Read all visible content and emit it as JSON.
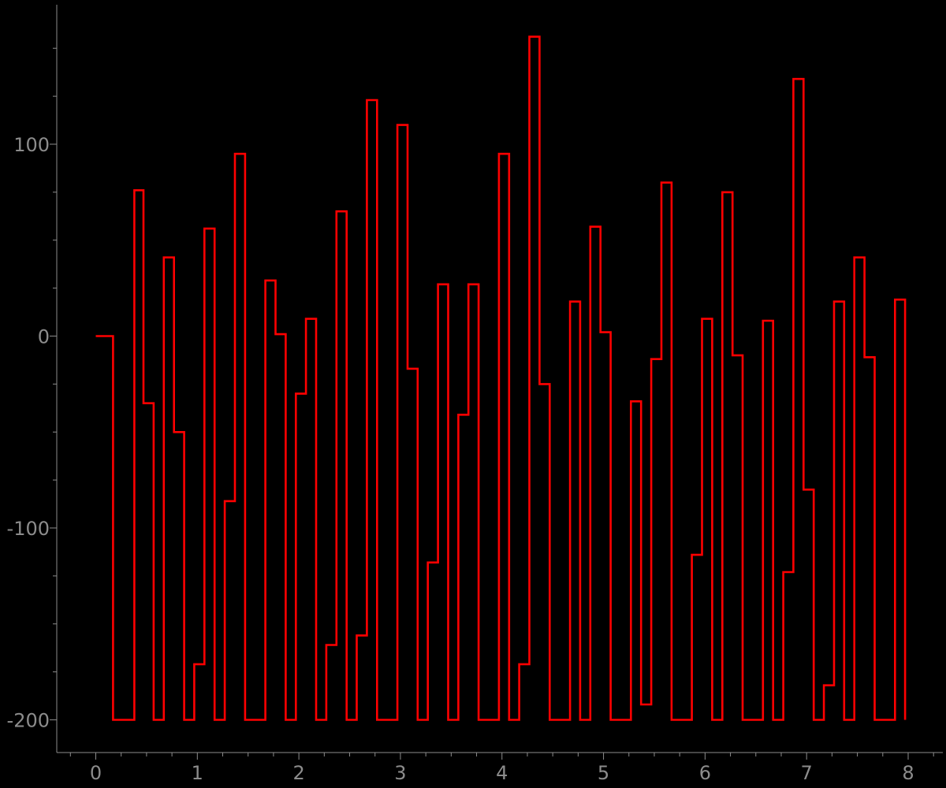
{
  "chart_data": {
    "type": "line",
    "title": "",
    "xlabel": "",
    "ylabel": "",
    "xlim": [
      -0.39,
      8.27
    ],
    "ylim": [
      -218,
      173
    ],
    "x_ticks": [
      0,
      1,
      2,
      3,
      4,
      5,
      6,
      7,
      8
    ],
    "y_ticks": [
      -200,
      -100,
      0,
      100
    ],
    "x_tick_labels": [
      "0",
      "1",
      "2",
      "3",
      "4",
      "5",
      "6",
      "7",
      "8"
    ],
    "y_tick_labels": [
      "-200",
      "-100",
      "0",
      "100"
    ],
    "grid": false,
    "legend": "none",
    "line_color": "#ff0000",
    "background_color": "#000000",
    "axis_color": "#8c8c8c",
    "series": [
      {
        "x": [
          0,
          0.17,
          0.17,
          0.38,
          0.38,
          0.47,
          0.47,
          0.57,
          0.57,
          0.67,
          0.67,
          0.77,
          0.77,
          0.87,
          0.87,
          0.97,
          0.97,
          1.07,
          1.07,
          1.17,
          1.17,
          1.27,
          1.27,
          1.37,
          1.37,
          1.47,
          1.47,
          1.67,
          1.67,
          1.77,
          1.77,
          1.87,
          1.87,
          1.97,
          1.97,
          2.07,
          2.07,
          2.17,
          2.17,
          2.27,
          2.27,
          2.37,
          2.37,
          2.47,
          2.47,
          2.57,
          2.57,
          2.67,
          2.67,
          2.77,
          2.77,
          2.97,
          2.97,
          3.07,
          3.07,
          3.17,
          3.17,
          3.27,
          3.27,
          3.37,
          3.37,
          3.47,
          3.47,
          3.57,
          3.57,
          3.67,
          3.67,
          3.77,
          3.77,
          3.97,
          3.97,
          4.07,
          4.07,
          4.17,
          4.17,
          4.27,
          4.27,
          4.37,
          4.37,
          4.47,
          4.47,
          4.67,
          4.67,
          4.77,
          4.77,
          4.87,
          4.87,
          4.97,
          4.97,
          5.07,
          5.07,
          5.27,
          5.27,
          5.37,
          5.37,
          5.47,
          5.47,
          5.57,
          5.57,
          5.67,
          5.67,
          5.87,
          5.87,
          5.97,
          5.97,
          6.07,
          6.07,
          6.17,
          6.17,
          6.27,
          6.27,
          6.37,
          6.37,
          6.57,
          6.57,
          6.67,
          6.67,
          6.77,
          6.77,
          6.87,
          6.87,
          6.97,
          6.97,
          7.07,
          7.07,
          7.17,
          7.17,
          7.27,
          7.27,
          7.37,
          7.37,
          7.47,
          7.47,
          7.57,
          7.57,
          7.67,
          7.67,
          7.87,
          7.87,
          7.97,
          7.97
        ],
        "y": [
          0,
          0,
          -200,
          -200,
          76,
          76,
          -35,
          -35,
          -200,
          -200,
          41,
          41,
          -50,
          -50,
          -200,
          -200,
          -171,
          -171,
          56,
          56,
          -200,
          -200,
          -86,
          -86,
          95,
          95,
          -200,
          -200,
          29,
          29,
          1,
          1,
          -200,
          -200,
          -30,
          -30,
          9,
          9,
          -200,
          -200,
          -161,
          -161,
          65,
          65,
          -200,
          -200,
          -156,
          -156,
          123,
          123,
          -200,
          -200,
          110,
          110,
          -17,
          -17,
          -200,
          -200,
          -118,
          -118,
          27,
          27,
          -200,
          -200,
          -41,
          -41,
          27,
          27,
          -200,
          -200,
          95,
          95,
          -200,
          -200,
          -171,
          -171,
          156,
          156,
          -25,
          -25,
          -200,
          -200,
          18,
          18,
          -200,
          -200,
          57,
          57,
          2,
          2,
          -200,
          -200,
          -34,
          -34,
          -192,
          -192,
          -12,
          -12,
          80,
          80,
          -200,
          -200,
          -114,
          -114,
          9,
          9,
          -200,
          -200,
          75,
          75,
          -10,
          -10,
          -200,
          -200,
          8,
          8,
          -200,
          -200,
          -123,
          -123,
          134,
          134,
          -80,
          -80,
          -200,
          -200,
          -182,
          -182,
          18,
          18,
          -200,
          -200,
          41,
          41,
          -11,
          -11,
          -200,
          -200,
          19,
          19,
          -200
        ]
      }
    ]
  }
}
